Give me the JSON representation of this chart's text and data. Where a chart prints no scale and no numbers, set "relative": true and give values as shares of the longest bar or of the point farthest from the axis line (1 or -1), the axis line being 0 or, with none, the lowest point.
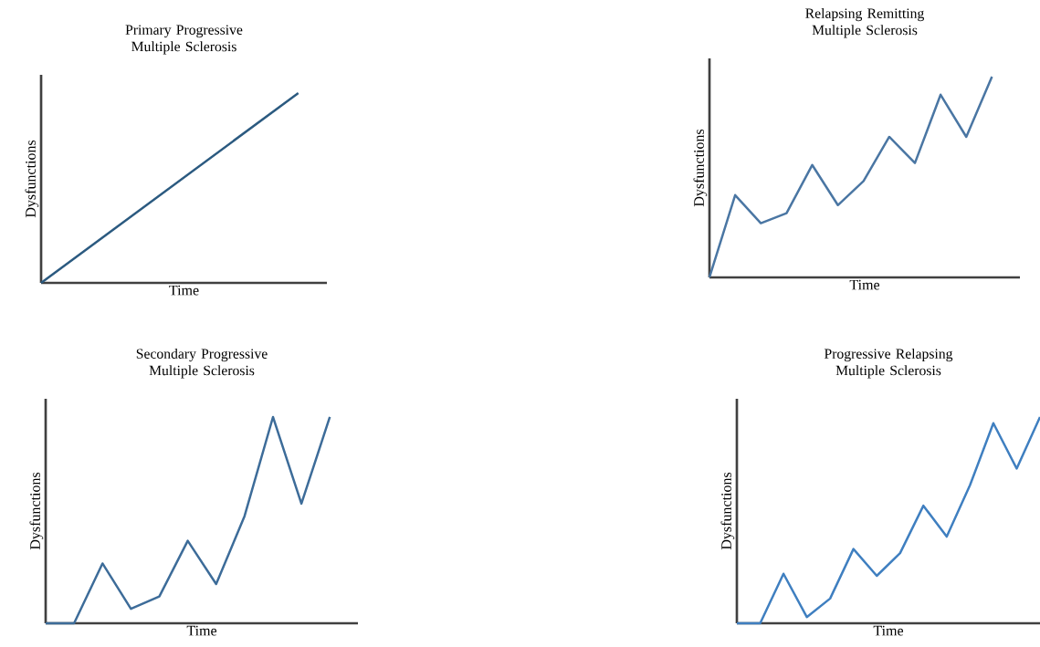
{
  "chart_data": [
    {
      "type": "line",
      "title": "Primary Progressive Multiple Sclerosis",
      "xlabel": "Time",
      "ylabel": "Dysfunctions",
      "relative": true,
      "tick_labels": false,
      "color": "#2b5a80",
      "categories": [
        null,
        null
      ],
      "values": [
        0,
        1
      ]
    },
    {
      "type": "line",
      "title": "Relapsing Remitting Multiple Sclerosis",
      "xlabel": "Time",
      "ylabel": "Dysfunctions",
      "relative": true,
      "tick_labels": false,
      "color": "#4a76a3",
      "categories": [
        null,
        null,
        null,
        null,
        null,
        null,
        null,
        null,
        null,
        null,
        null,
        null
      ],
      "values": [
        0,
        0.41,
        0.27,
        0.32,
        0.56,
        0.36,
        0.48,
        0.7,
        0.57,
        0.91,
        0.7,
        1
      ]
    },
    {
      "type": "line",
      "title": "Secondary Progressive Multiple Sclerosis",
      "xlabel": "Time",
      "ylabel": "Dysfunctions",
      "relative": true,
      "tick_labels": false,
      "color": "#3d6c99",
      "categories": [
        null,
        null,
        null,
        null,
        null,
        null,
        null,
        null,
        null,
        null,
        null
      ],
      "values": [
        0,
        0,
        0.29,
        0.07,
        0.13,
        0.4,
        0.19,
        0.52,
        1,
        0.58,
        1
      ]
    },
    {
      "type": "line",
      "title": "Progressive Relapsing Multiple Sclerosis",
      "xlabel": "Time",
      "ylabel": "Dysfunctions",
      "relative": true,
      "tick_labels": false,
      "color": "#3f7fc0",
      "categories": [
        null,
        null,
        null,
        null,
        null,
        null,
        null,
        null,
        null,
        null,
        null,
        null,
        null,
        null
      ],
      "values": [
        0,
        0,
        0.24,
        0.03,
        0.12,
        0.36,
        0.23,
        0.34,
        0.57,
        0.42,
        0.67,
        0.97,
        0.75,
        1
      ]
    }
  ]
}
